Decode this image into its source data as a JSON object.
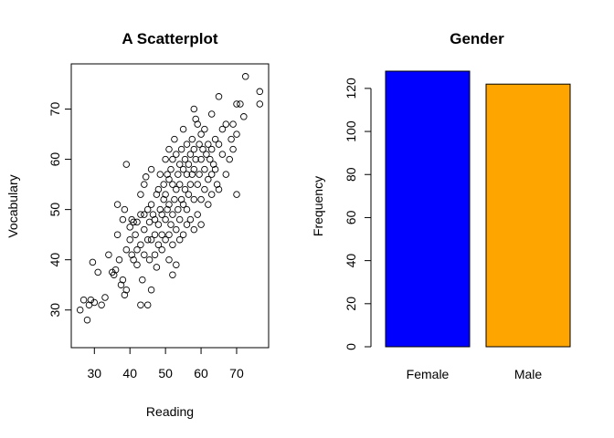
{
  "chart_data": [
    {
      "type": "scatter",
      "title": "A Scatterplot",
      "xlabel": "Reading",
      "ylabel": "Vocabulary",
      "xlim": [
        23.5,
        79
      ],
      "ylim": [
        22.5,
        79
      ],
      "xticks": [
        30,
        40,
        50,
        60,
        70
      ],
      "yticks": [
        30,
        40,
        50,
        60,
        70
      ],
      "grid": false,
      "points": [
        [
          26,
          30
        ],
        [
          27,
          32
        ],
        [
          28,
          28
        ],
        [
          28.5,
          31
        ],
        [
          29,
          32
        ],
        [
          29.5,
          39.5
        ],
        [
          30,
          31.5
        ],
        [
          31,
          37.5
        ],
        [
          32,
          31
        ],
        [
          33,
          32.5
        ],
        [
          34,
          41
        ],
        [
          35,
          37.5
        ],
        [
          35.5,
          37
        ],
        [
          36,
          38
        ],
        [
          36.5,
          45
        ],
        [
          36.5,
          51
        ],
        [
          37,
          40
        ],
        [
          37.5,
          35
        ],
        [
          38,
          48
        ],
        [
          38,
          36
        ],
        [
          38.5,
          50
        ],
        [
          38.5,
          33
        ],
        [
          39,
          59
        ],
        [
          39,
          42
        ],
        [
          39,
          34
        ],
        [
          40,
          46.5
        ],
        [
          40,
          44
        ],
        [
          40.5,
          48
        ],
        [
          40.5,
          41
        ],
        [
          41,
          40
        ],
        [
          41,
          47.5
        ],
        [
          41.5,
          45
        ],
        [
          42,
          47.5
        ],
        [
          42,
          42
        ],
        [
          42,
          39
        ],
        [
          43,
          53
        ],
        [
          43,
          49
        ],
        [
          43,
          43
        ],
        [
          43,
          31
        ],
        [
          43.5,
          36
        ],
        [
          44,
          46
        ],
        [
          44,
          49
        ],
        [
          44,
          55
        ],
        [
          44,
          41
        ],
        [
          44.5,
          56.5
        ],
        [
          45,
          44
        ],
        [
          45,
          50
        ],
        [
          45,
          31
        ],
        [
          45.5,
          47.5
        ],
        [
          45.5,
          40
        ],
        [
          46,
          51
        ],
        [
          46,
          58
        ],
        [
          46,
          44
        ],
        [
          46,
          34
        ],
        [
          46.5,
          49
        ],
        [
          47,
          48
        ],
        [
          47,
          45
        ],
        [
          47,
          41
        ],
        [
          47.5,
          53
        ],
        [
          47.5,
          38.5
        ],
        [
          48,
          54
        ],
        [
          48,
          47
        ],
        [
          48,
          43
        ],
        [
          48.5,
          57
        ],
        [
          48.5,
          50
        ],
        [
          49,
          45
        ],
        [
          49,
          42
        ],
        [
          49,
          49
        ],
        [
          49.5,
          52
        ],
        [
          49.5,
          55
        ],
        [
          50,
          53
        ],
        [
          50,
          48
        ],
        [
          50,
          60
        ],
        [
          50,
          44
        ],
        [
          50.5,
          50
        ],
        [
          50.5,
          57
        ],
        [
          51,
          62
        ],
        [
          51,
          56
        ],
        [
          51,
          51
        ],
        [
          51,
          45
        ],
        [
          51,
          40
        ],
        [
          51.5,
          58
        ],
        [
          51.5,
          47
        ],
        [
          52,
          60
        ],
        [
          52,
          55
        ],
        [
          52,
          49
        ],
        [
          52,
          43
        ],
        [
          52,
          37
        ],
        [
          52.5,
          52
        ],
        [
          52.5,
          64
        ],
        [
          53,
          61
        ],
        [
          53,
          54
        ],
        [
          53,
          46
        ],
        [
          53,
          39
        ],
        [
          53.5,
          57
        ],
        [
          53.5,
          50
        ],
        [
          54,
          59
        ],
        [
          54,
          55
        ],
        [
          54,
          48
        ],
        [
          54,
          44
        ],
        [
          54.5,
          62
        ],
        [
          54.5,
          52
        ],
        [
          55,
          66
        ],
        [
          55,
          58
        ],
        [
          55,
          51
        ],
        [
          55,
          45
        ],
        [
          55.5,
          60
        ],
        [
          55.5,
          54
        ],
        [
          56,
          63
        ],
        [
          56,
          57
        ],
        [
          56,
          50
        ],
        [
          56,
          47
        ],
        [
          56.5,
          59
        ],
        [
          56.5,
          53
        ],
        [
          57,
          61
        ],
        [
          57,
          55
        ],
        [
          57,
          48
        ],
        [
          57.5,
          64
        ],
        [
          57.5,
          57
        ],
        [
          58,
          70
        ],
        [
          58,
          62
        ],
        [
          58,
          58
        ],
        [
          58,
          52
        ],
        [
          58,
          46
        ],
        [
          58.5,
          68
        ],
        [
          58.5,
          60
        ],
        [
          59,
          67
        ],
        [
          59,
          55
        ],
        [
          59,
          49
        ],
        [
          59.5,
          63
        ],
        [
          59.5,
          57
        ],
        [
          60,
          65
        ],
        [
          60,
          60
        ],
        [
          60,
          52
        ],
        [
          60,
          47
        ],
        [
          60.5,
          62
        ],
        [
          61,
          66
        ],
        [
          61,
          58
        ],
        [
          61,
          54
        ],
        [
          61.5,
          61
        ],
        [
          62,
          63
        ],
        [
          62,
          56
        ],
        [
          62,
          51
        ],
        [
          62.5,
          60
        ],
        [
          63,
          69
        ],
        [
          63,
          62
        ],
        [
          63,
          57
        ],
        [
          63,
          53
        ],
        [
          63.5,
          59
        ],
        [
          64,
          64
        ],
        [
          64,
          58
        ],
        [
          64.5,
          55
        ],
        [
          65,
          72.5
        ],
        [
          65,
          63
        ],
        [
          65,
          54
        ],
        [
          66,
          66
        ],
        [
          66,
          61
        ],
        [
          67,
          67
        ],
        [
          67,
          57
        ],
        [
          68,
          60
        ],
        [
          68.5,
          64
        ],
        [
          69,
          67
        ],
        [
          69,
          62
        ],
        [
          70,
          71
        ],
        [
          70,
          65
        ],
        [
          70,
          53
        ],
        [
          71,
          71
        ],
        [
          72,
          68.5
        ],
        [
          72.5,
          76.5
        ],
        [
          76.5,
          73.5
        ],
        [
          76.5,
          71
        ]
      ]
    },
    {
      "type": "bar",
      "title": "Gender",
      "xlabel": "",
      "ylabel": "Frequency",
      "categories": [
        "Female",
        "Male"
      ],
      "values": [
        128,
        122
      ],
      "colors": [
        "#0000FF",
        "#FFA500"
      ],
      "ylim": [
        0,
        130
      ],
      "yticks": [
        0,
        20,
        40,
        60,
        80,
        100,
        120
      ],
      "grid": false
    }
  ]
}
